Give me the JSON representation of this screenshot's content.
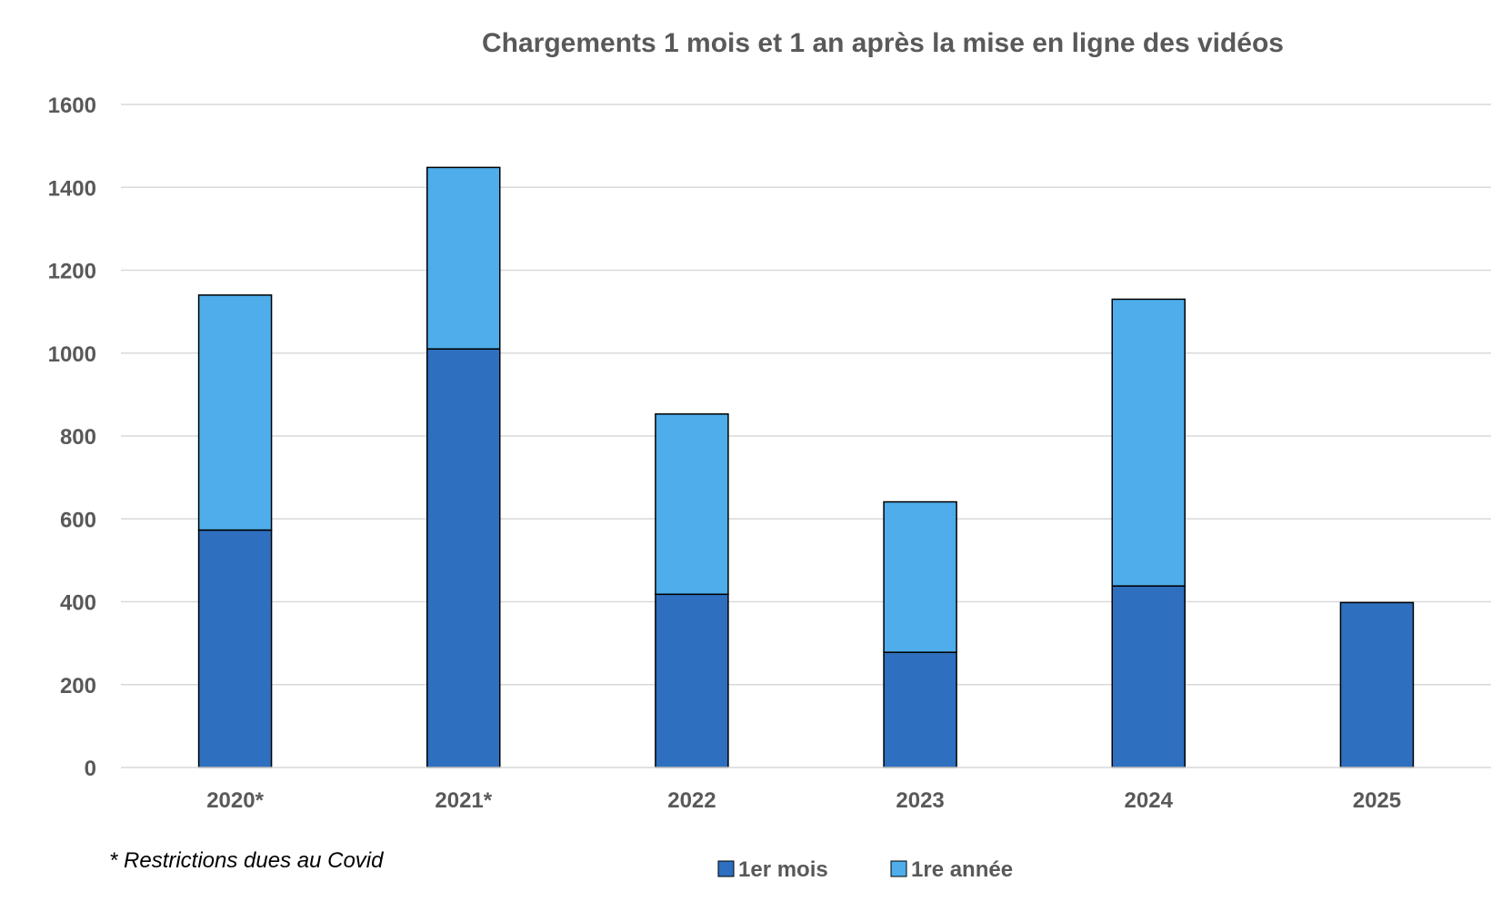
{
  "chart_data": {
    "type": "bar",
    "stacked": true,
    "title": "Chargements 1 mois et 1 an après la mise en ligne des vidéos",
    "xlabel": "",
    "ylabel": "",
    "ylim": [
      0,
      1600
    ],
    "yticks": [
      "0",
      "200",
      "400",
      "600",
      "800",
      "1000",
      "1200",
      "1400",
      "1600"
    ],
    "categories": [
      "2020*",
      "2021*",
      "2022",
      "2023",
      "2024",
      "2025"
    ],
    "series": [
      {
        "name": "1er mois",
        "color": "#2e6fbf",
        "values": [
          573,
          1010,
          418,
          278,
          438,
          398
        ]
      },
      {
        "name": "1re année",
        "color": "#4eadea",
        "values": [
          567,
          438,
          435,
          363,
          692,
          0
        ]
      }
    ],
    "grid": true,
    "legend_position": "bottom",
    "footnote": "* Restrictions dues au Covid"
  }
}
